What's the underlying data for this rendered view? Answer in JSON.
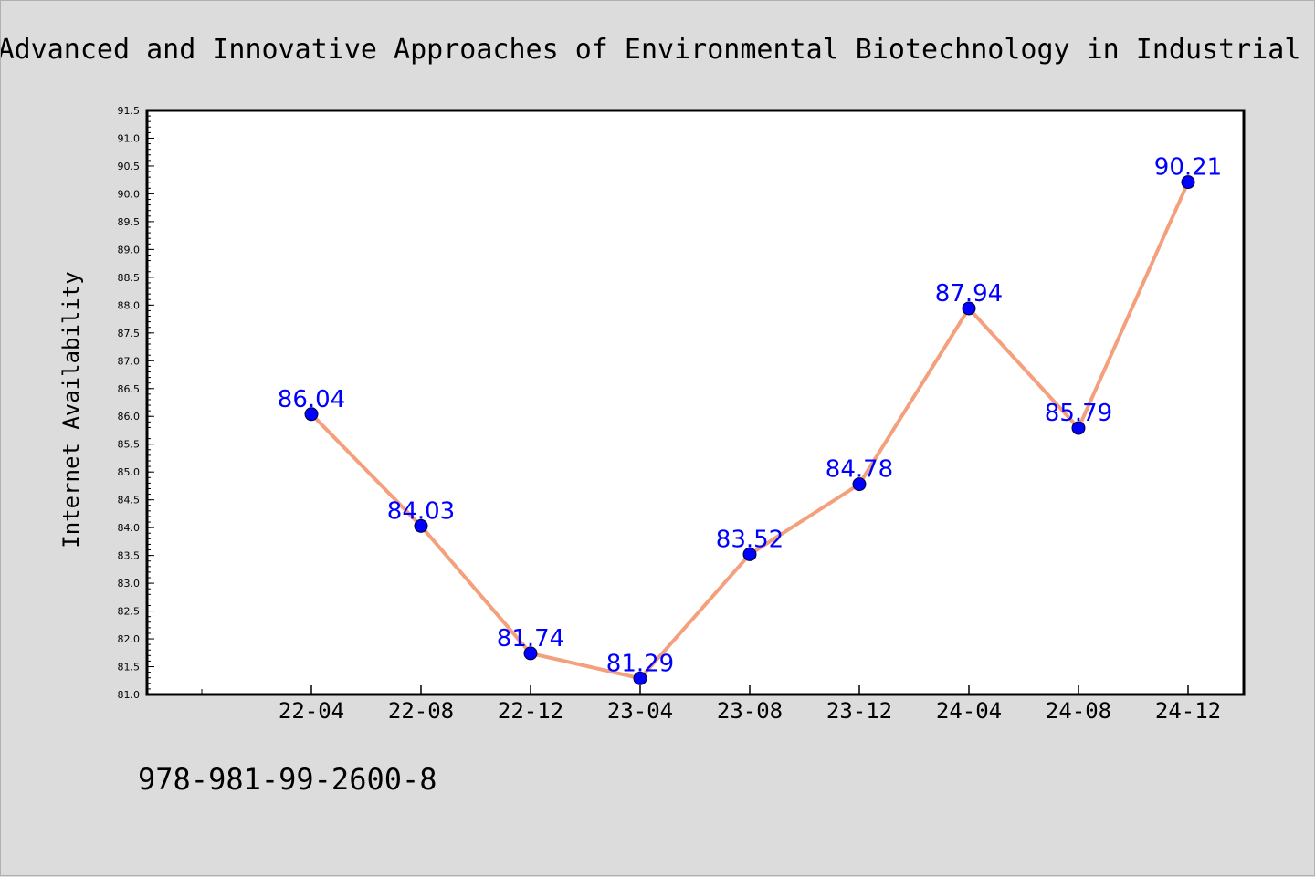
{
  "title": "Advanced and Innovative Approaches of Environmental Biotechnology in Industrial",
  "footer_text": "978-981-99-2600-8",
  "colors": {
    "background": "#dcdcdc",
    "plot_background": "#ffffff",
    "line": "#f4a07c",
    "marker": "#0000ff",
    "data_label": "#0000ff"
  },
  "chart_data": {
    "type": "line",
    "title": "Advanced and Innovative Approaches of Environmental Biotechnology in Industrial",
    "xlabel": "",
    "ylabel": "Internet Availability",
    "categories": [
      "22-04",
      "22-08",
      "22-12",
      "23-04",
      "23-08",
      "23-12",
      "24-04",
      "24-08",
      "24-12"
    ],
    "series": [
      {
        "values": [
          86.04,
          84.03,
          81.74,
          81.29,
          83.52,
          84.78,
          87.94,
          85.79,
          90.21
        ]
      }
    ],
    "data_labels": [
      "86.04",
      "84.03",
      "81.74",
      "81.29",
      "83.52",
      "84.78",
      "87.94",
      "85.79",
      "90.21"
    ],
    "ylim": [
      81.0,
      91.5
    ],
    "yticks": [
      "81.0",
      "81.5",
      "82.0",
      "82.5",
      "83.0",
      "83.5",
      "84.0",
      "84.5",
      "85.0",
      "85.5",
      "86.0",
      "86.5",
      "87.0",
      "87.5",
      "88.0",
      "88.5",
      "89.0",
      "89.5",
      "90.0",
      "90.5",
      "91.0",
      "91.5"
    ],
    "grid": false,
    "legend": "none"
  }
}
